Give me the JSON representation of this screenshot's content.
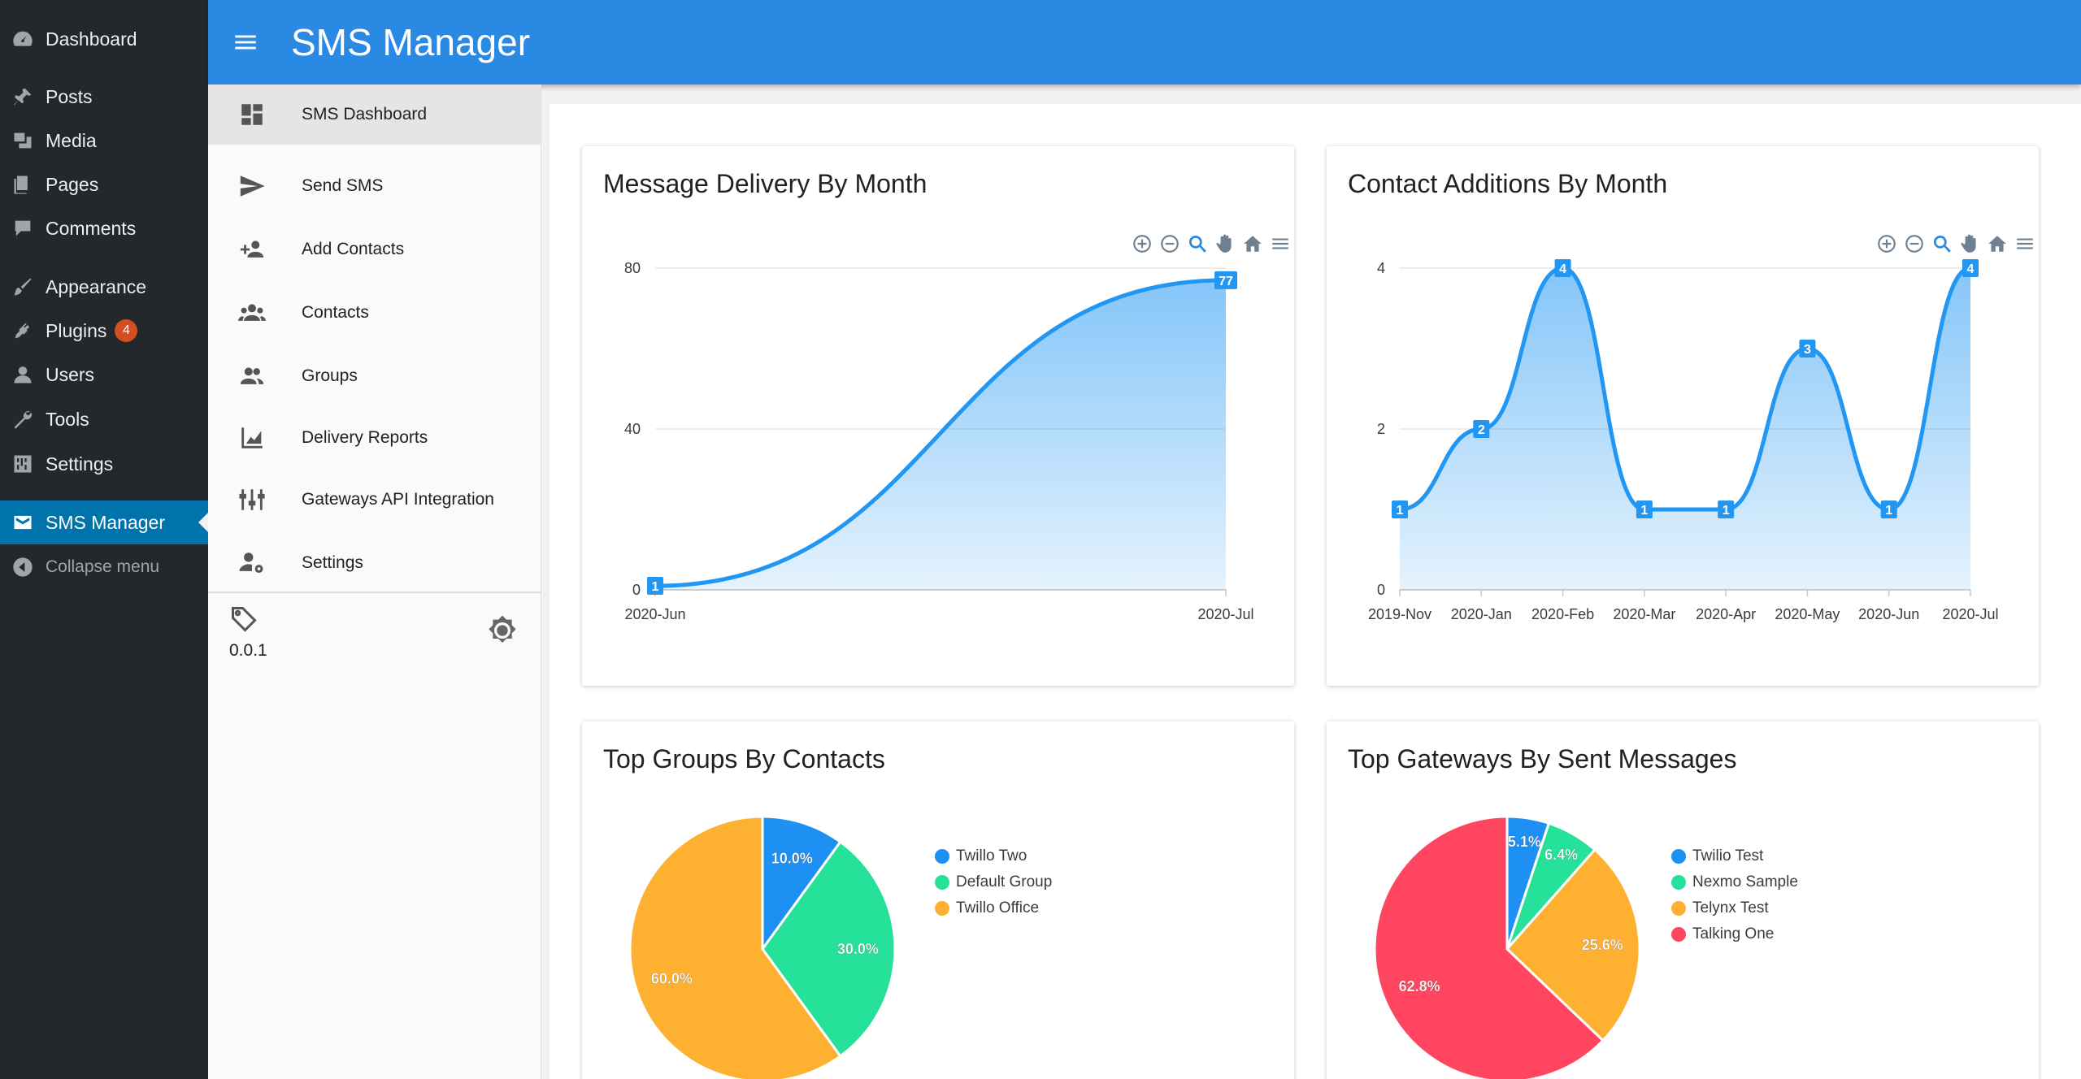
{
  "wp_menu": {
    "items": [
      {
        "label": "Dashboard",
        "icon": "dashboard-icon"
      },
      {
        "label": "Posts",
        "icon": "pin-icon"
      },
      {
        "label": "Media",
        "icon": "media-icon"
      },
      {
        "label": "Pages",
        "icon": "pages-icon"
      },
      {
        "label": "Comments",
        "icon": "comment-icon"
      },
      {
        "label": "Appearance",
        "icon": "brush-icon"
      },
      {
        "label": "Plugins",
        "icon": "plugin-icon",
        "badge": "4"
      },
      {
        "label": "Users",
        "icon": "user-icon"
      },
      {
        "label": "Tools",
        "icon": "wrench-icon"
      },
      {
        "label": "Settings",
        "icon": "settings-sliders-icon"
      },
      {
        "label": "SMS Manager",
        "icon": "sms-icon"
      },
      {
        "label": "Collapse menu",
        "icon": "collapse-icon"
      }
    ]
  },
  "app": {
    "title": "SMS Manager"
  },
  "plugin_nav": {
    "items": [
      {
        "label": "SMS Dashboard",
        "icon": "dashboard-grid-icon"
      },
      {
        "label": "Send SMS",
        "icon": "send-icon"
      },
      {
        "label": "Add Contacts",
        "icon": "add-people-icon"
      },
      {
        "label": "Contacts",
        "icon": "people-icon"
      },
      {
        "label": "Groups",
        "icon": "group-icon"
      },
      {
        "label": "Delivery Reports",
        "icon": "area-chart-icon"
      },
      {
        "label": "Gateways API Integration",
        "icon": "tune-icon"
      },
      {
        "label": "Settings",
        "icon": "user-settings-icon"
      }
    ],
    "version": "0.0.1"
  },
  "colors": {
    "appbar": "#2a8ae3",
    "wp_menu_bg": "#23282d",
    "wp_active": "#0073aa",
    "line": "#2196f3",
    "pie_blue": "#1e8ff3",
    "pie_green": "#26e19a",
    "pie_orange": "#feb031",
    "pie_red": "#ff4560"
  },
  "chart_data": [
    {
      "type": "area",
      "title": "Message Delivery By Month",
      "categories": [
        "2020-Jun",
        "2020-Jul"
      ],
      "values": [
        1,
        77
      ],
      "data_labels": [
        "1",
        "77"
      ],
      "yticks": [
        "0",
        "40",
        "80"
      ],
      "ylim": [
        0,
        80
      ],
      "grid": true,
      "toolbar": [
        "zoom-in-icon",
        "zoom-out-icon",
        "magnifier-icon",
        "pan-hand-icon",
        "home-icon",
        "menu-icon"
      ]
    },
    {
      "type": "area",
      "title": "Contact Additions By Month",
      "categories": [
        "2019-Nov",
        "2020-Jan",
        "2020-Feb",
        "2020-Mar",
        "2020-Apr",
        "2020-May",
        "2020-Jun",
        "2020-Jul"
      ],
      "values": [
        1,
        2,
        4,
        1,
        1,
        3,
        1,
        4
      ],
      "data_labels": [
        "1",
        "2",
        "4",
        "1",
        "1",
        "3",
        "1",
        "4"
      ],
      "yticks": [
        "0",
        "2",
        "4"
      ],
      "ylim": [
        0,
        4
      ],
      "grid": true,
      "toolbar": [
        "zoom-in-icon",
        "zoom-out-icon",
        "magnifier-icon",
        "pan-hand-icon",
        "home-icon",
        "menu-icon"
      ]
    },
    {
      "type": "pie",
      "title": "Top Groups By Contacts",
      "labels": [
        "Twillo Two",
        "Default Group",
        "Twillo Office"
      ],
      "values": [
        10.0,
        30.0,
        60.0
      ],
      "value_labels": [
        "10.0%",
        "30.0%",
        "60.0%"
      ],
      "colors": [
        "#1e8ff3",
        "#26e19a",
        "#feb031"
      ],
      "legend": "right"
    },
    {
      "type": "pie",
      "title": "Top Gateways By Sent Messages",
      "labels": [
        "Twilio Test",
        "Nexmo Sample",
        "Telynx Test",
        "Talking One"
      ],
      "values": [
        5.1,
        6.4,
        25.6,
        62.8
      ],
      "value_labels": [
        "5.1%",
        "6.4%",
        "25.6%",
        "62.8%"
      ],
      "colors": [
        "#1e8ff3",
        "#26e19a",
        "#feb031",
        "#ff4560"
      ],
      "legend": "right"
    }
  ]
}
